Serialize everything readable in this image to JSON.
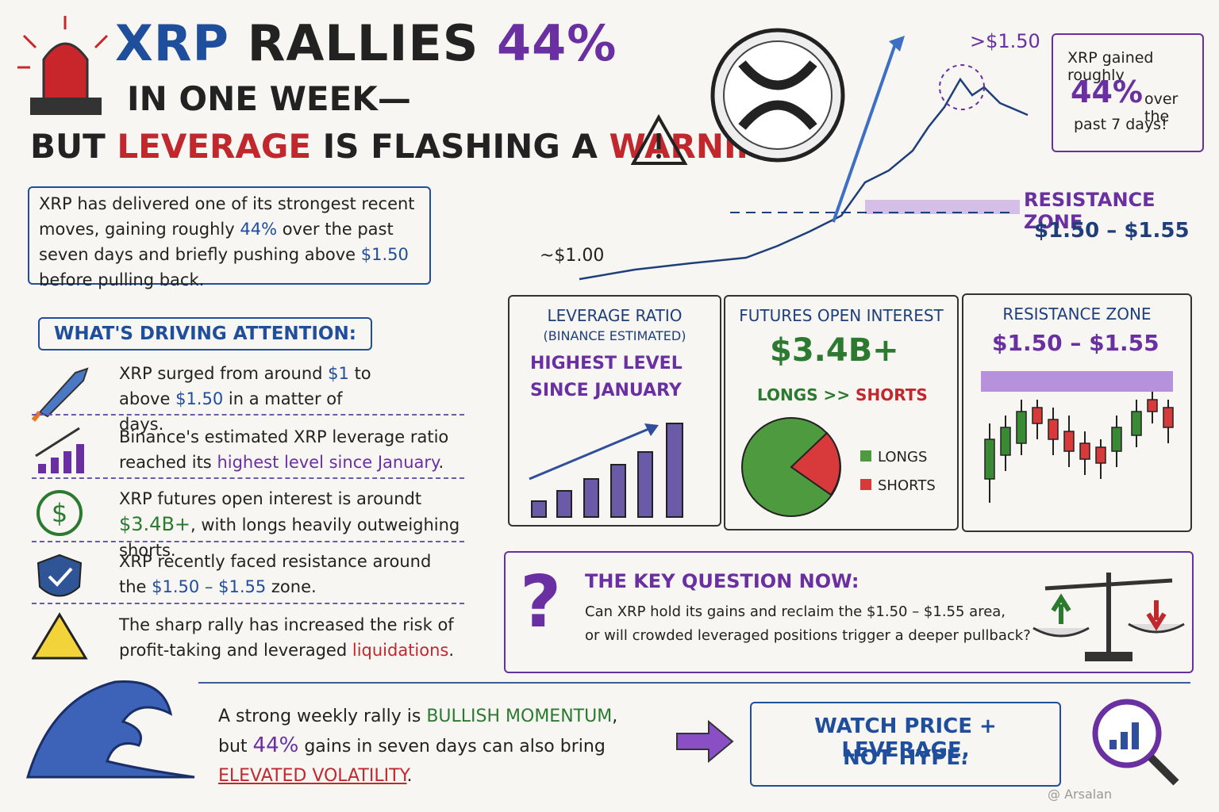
{
  "header": {
    "title": [
      "XRP",
      "RALLIES",
      "44%"
    ],
    "subtitle": "IN ONE WEEK—",
    "warning_line": [
      "BUT ",
      "LEVERAGE",
      " IS FLASHING A ",
      "WARNING"
    ]
  },
  "intro": [
    "XRP has delivered one of its strongest recent moves, gaining roughly ",
    "44%",
    " over the past seven days and briefly pushing above ",
    "$1.50",
    " before pulling back."
  ],
  "price_chart": {
    "start_label": "~$1.00",
    "peak_label": ">$1.50",
    "zone_title": "RESISTANCE ZONE",
    "zone_range": "$1.50 – $1.55"
  },
  "callout": [
    "XRP gained roughly",
    "44%",
    "over the",
    "past 7 days!"
  ],
  "drivers": {
    "heading": "WHAT'S DRIVING ATTENTION:",
    "items": [
      [
        "XRP surged from around ",
        "$1",
        " to above ",
        "$1.50",
        " in a matter of days."
      ],
      [
        "Binance's estimated XRP leverage ratio reached its ",
        "highest level since January",
        "."
      ],
      [
        "XRP futures open interest is aroundt ",
        "$3.4B+",
        ", with longs heavily outweighing shorts."
      ],
      [
        "XRP recently faced resistance around the ",
        "$1.50 – $1.55",
        " zone."
      ],
      [
        "The sharp rally has increased the risk of profit-taking and leveraged ",
        "liquidations",
        "."
      ]
    ]
  },
  "panels": [
    {
      "title": "LEVERAGE RATIO",
      "subtitle": "(BINANCE ESTIMATED)",
      "note": [
        "HIGHEST LEVEL",
        "SINCE JANUARY"
      ]
    },
    {
      "title": "FUTURES OPEN INTEREST",
      "value": "$3.4B+",
      "comparison": [
        "LONGS >> ",
        "SHORTS"
      ],
      "legend": [
        "LONGS",
        "SHORTS"
      ]
    },
    {
      "title": "RESISTANCE ZONE",
      "value": "$1.50 – $1.55"
    }
  ],
  "key_question": {
    "heading": "THE KEY QUESTION NOW:",
    "text": [
      "Can XRP hold its gains and reclaim the $1.50 – $1.55 area,",
      "or will crowded leveraged positions trigger a deeper pullback?"
    ]
  },
  "footer": {
    "text": [
      "A strong weekly rally is ",
      "BULLISH MOMENTUM",
      ", but ",
      "44%",
      " gains in seven days can also bring ",
      "ELEVATED VOLATILITY",
      "."
    ],
    "cta": [
      "WATCH PRICE + LEVERAGE,",
      "NOT HYPE."
    ],
    "watermark": "@ Arsalan"
  }
}
